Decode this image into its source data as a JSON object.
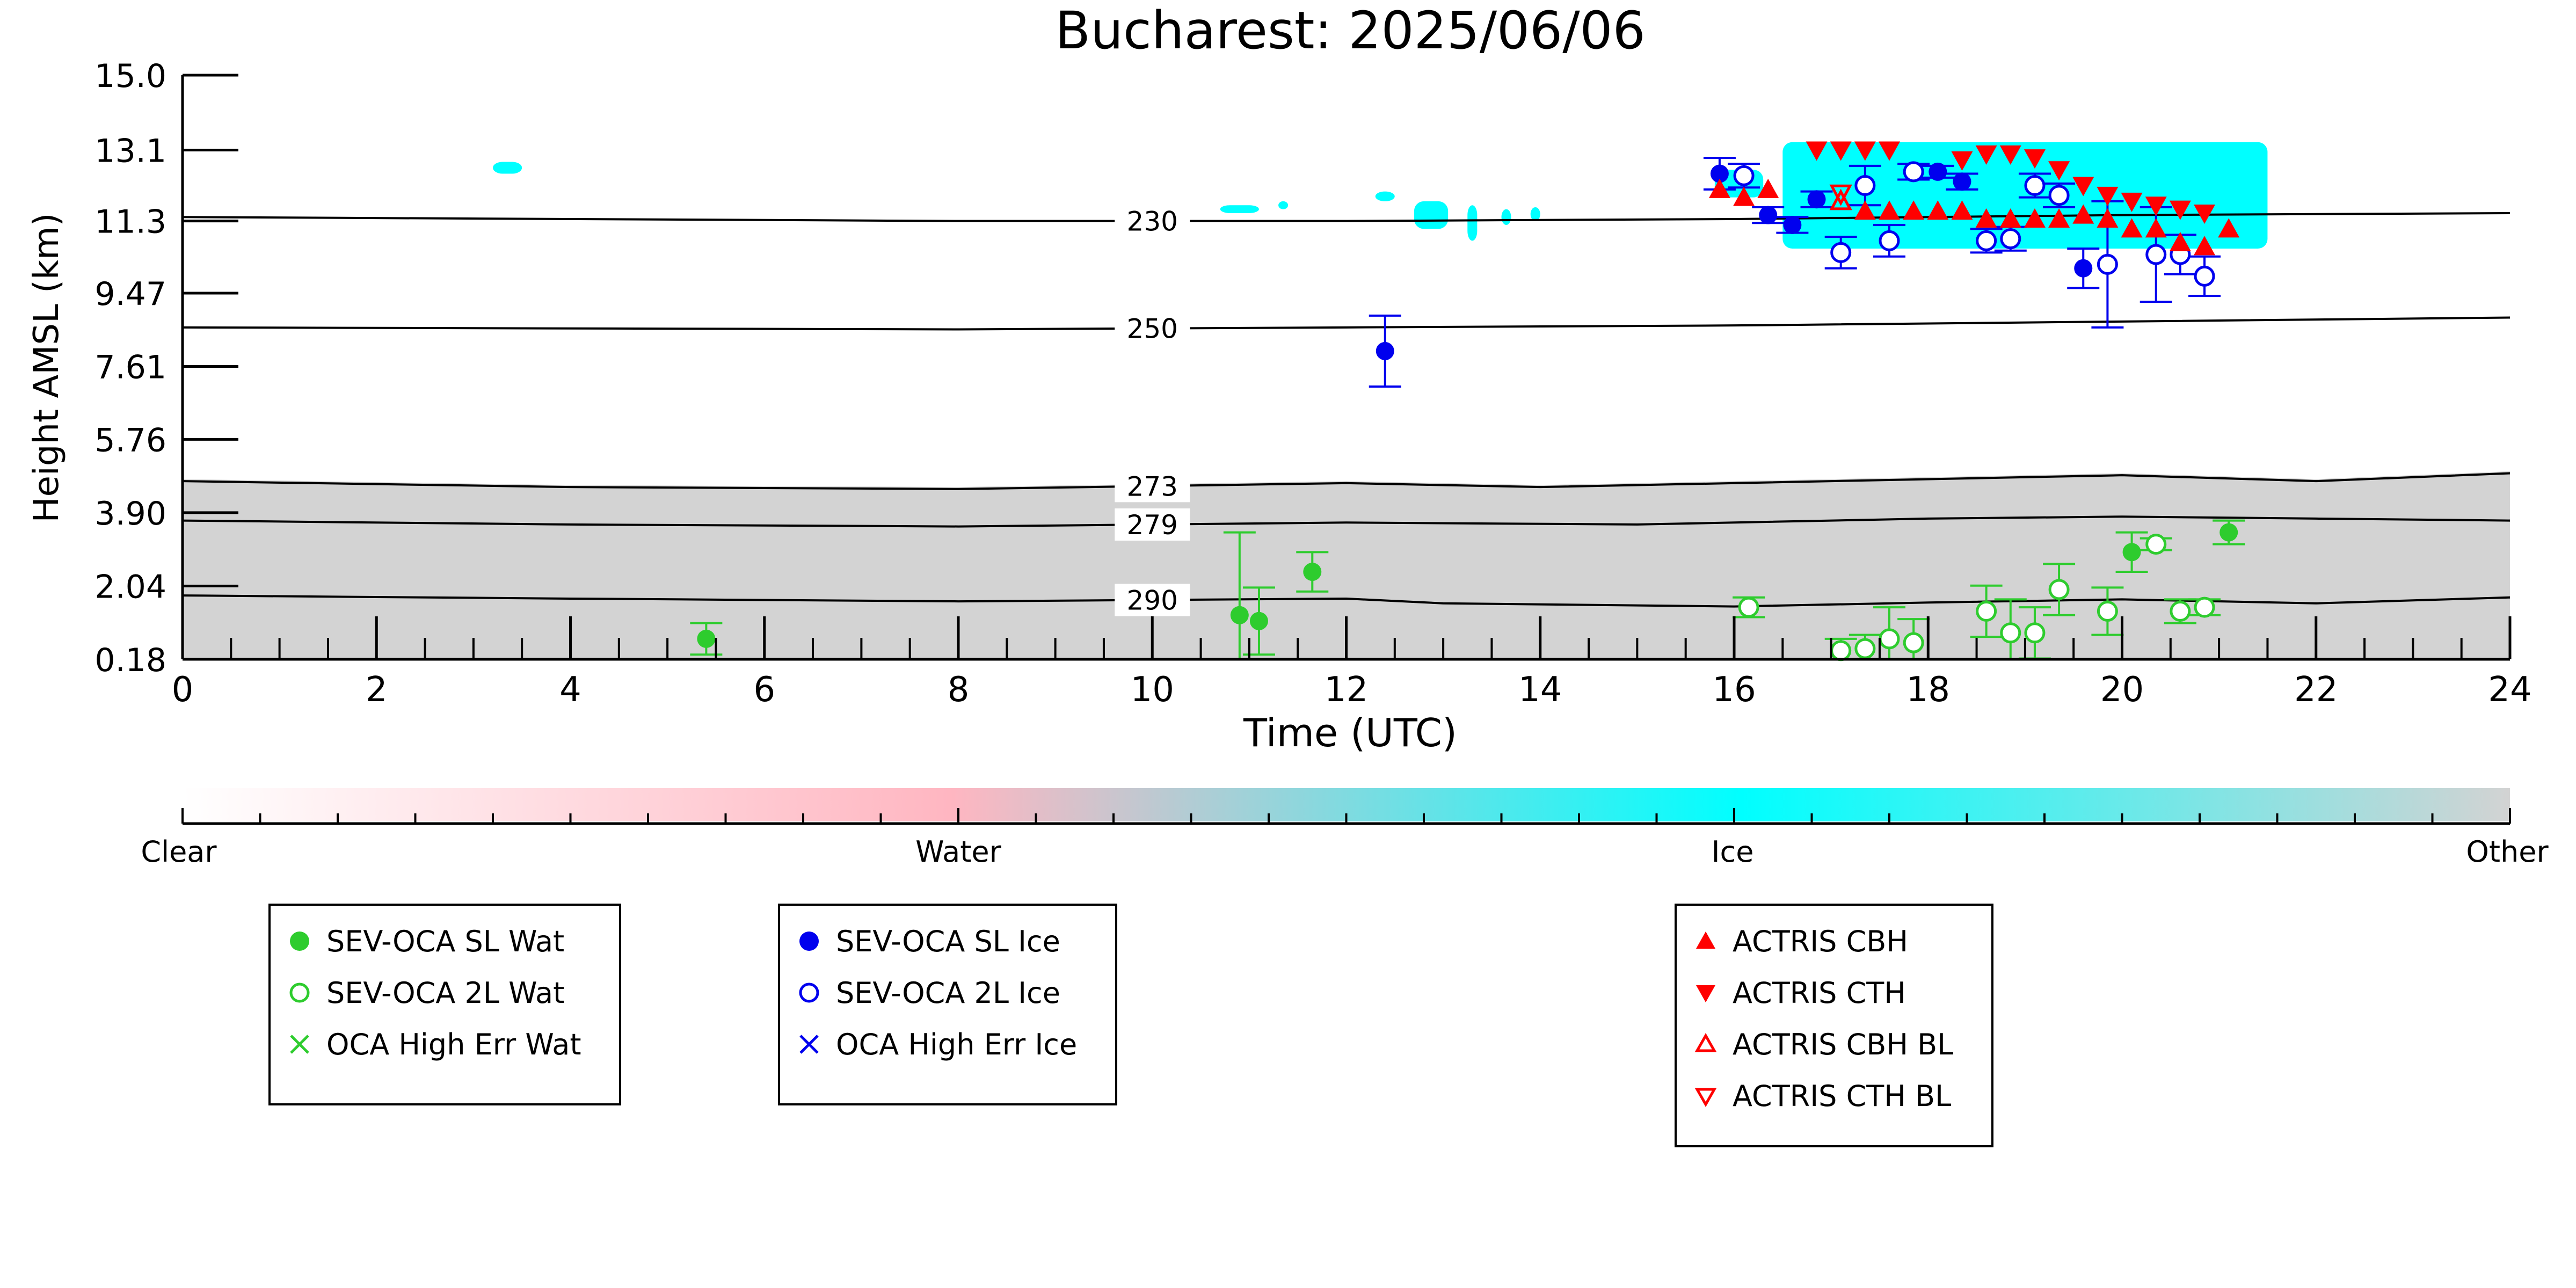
{
  "chart_data": {
    "type": "scatter",
    "title": "Bucharest: 2025/06/06",
    "xlabel": "Time (UTC)",
    "ylabel": "Height AMSL (km)",
    "xlim": [
      0,
      24
    ],
    "ylim": [
      0.18,
      15.0
    ],
    "xticks": [
      "0",
      "2",
      "4",
      "6",
      "8",
      "10",
      "12",
      "14",
      "16",
      "18",
      "20",
      "22",
      "24"
    ],
    "yticks": [
      "0.18",
      "2.04",
      "3.90",
      "5.76",
      "7.61",
      "9.47",
      "11.3",
      "13.1",
      "15.0"
    ],
    "isotherms": [
      {
        "label": "230",
        "points": [
          [
            0,
            11.4
          ],
          [
            8,
            11.3
          ],
          [
            12,
            11.3
          ],
          [
            16,
            11.35
          ],
          [
            20,
            11.45
          ],
          [
            24,
            11.5
          ]
        ]
      },
      {
        "label": "250",
        "points": [
          [
            0,
            8.6
          ],
          [
            8,
            8.55
          ],
          [
            12,
            8.6
          ],
          [
            16,
            8.65
          ],
          [
            20,
            8.75
          ],
          [
            24,
            8.85
          ]
        ]
      },
      {
        "label": "273",
        "points": [
          [
            0,
            4.7
          ],
          [
            4,
            4.55
          ],
          [
            8,
            4.5
          ],
          [
            12,
            4.65
          ],
          [
            14,
            4.55
          ],
          [
            16,
            4.65
          ],
          [
            18,
            4.75
          ],
          [
            20,
            4.85
          ],
          [
            22,
            4.7
          ],
          [
            24,
            4.9
          ]
        ]
      },
      {
        "label": "279",
        "points": [
          [
            0,
            3.7
          ],
          [
            4,
            3.6
          ],
          [
            8,
            3.55
          ],
          [
            10,
            3.6
          ],
          [
            12,
            3.65
          ],
          [
            15,
            3.6
          ],
          [
            16,
            3.65
          ],
          [
            18,
            3.75
          ],
          [
            20,
            3.8
          ],
          [
            22,
            3.75
          ],
          [
            24,
            3.7
          ]
        ]
      },
      {
        "label": "290",
        "points": [
          [
            0,
            1.8
          ],
          [
            4,
            1.72
          ],
          [
            8,
            1.65
          ],
          [
            12,
            1.72
          ],
          [
            13,
            1.6
          ],
          [
            16,
            1.52
          ],
          [
            18,
            1.62
          ],
          [
            20,
            1.7
          ],
          [
            22,
            1.6
          ],
          [
            24,
            1.75
          ]
        ]
      }
    ],
    "series": [
      {
        "name": "SEV-OCA SL Wat",
        "marker": "filled-circle",
        "color": "#2ecc2e",
        "points": [
          [
            5.4,
            0.7,
            0.4
          ],
          [
            10.9,
            1.3,
            2.1
          ],
          [
            11.1,
            1.15,
            0.85
          ],
          [
            11.65,
            2.4,
            0.5
          ],
          [
            20.1,
            2.9,
            0.5
          ],
          [
            21.1,
            3.4,
            0.3
          ]
        ]
      },
      {
        "name": "SEV-OCA 2L Wat",
        "marker": "open-circle",
        "color": "#2ecc2e",
        "points": [
          [
            16.15,
            1.5,
            0.25
          ],
          [
            17.1,
            0.4,
            0.3
          ],
          [
            17.35,
            0.45,
            0.35
          ],
          [
            17.6,
            0.7,
            0.8
          ],
          [
            17.85,
            0.6,
            0.6
          ],
          [
            18.6,
            1.4,
            0.65
          ],
          [
            18.85,
            0.85,
            0.85
          ],
          [
            19.1,
            0.85,
            0.65
          ],
          [
            19.35,
            1.95,
            0.65
          ],
          [
            19.85,
            1.4,
            0.6
          ],
          [
            20.35,
            3.1,
            0.15
          ],
          [
            20.6,
            1.4,
            0.3
          ],
          [
            20.85,
            1.5,
            0.2
          ]
        ]
      },
      {
        "name": "OCA High Err Wat",
        "marker": "cross",
        "color": "#2ecc2e",
        "points": []
      },
      {
        "name": "SEV-OCA SL Ice",
        "marker": "filled-circle",
        "color": "#0000ee",
        "points": [
          [
            12.4,
            8.0,
            0.9
          ],
          [
            15.85,
            12.5,
            0.4
          ],
          [
            16.35,
            11.45,
            0.2
          ],
          [
            16.6,
            11.2,
            0.2
          ],
          [
            16.85,
            11.85,
            0.2
          ],
          [
            18.1,
            12.55,
            0.15
          ],
          [
            18.35,
            12.3,
            0.2
          ],
          [
            19.6,
            10.1,
            0.5
          ]
        ]
      },
      {
        "name": "SEV-OCA 2L Ice",
        "marker": "open-circle",
        "color": "#0000ee",
        "points": [
          [
            16.1,
            12.45,
            0.3
          ],
          [
            17.1,
            10.5,
            0.4
          ],
          [
            17.35,
            12.2,
            0.5
          ],
          [
            17.6,
            10.8,
            0.4
          ],
          [
            17.85,
            12.55,
            0.2
          ],
          [
            18.6,
            10.8,
            0.3
          ],
          [
            18.85,
            10.85,
            0.3
          ],
          [
            19.1,
            12.2,
            0.3
          ],
          [
            19.35,
            11.95,
            0.3
          ],
          [
            19.85,
            10.2,
            1.6
          ],
          [
            20.35,
            10.45,
            1.2
          ],
          [
            20.6,
            10.45,
            0.5
          ],
          [
            20.85,
            9.9,
            0.5
          ]
        ]
      },
      {
        "name": "OCA High Err Ice",
        "marker": "cross",
        "color": "#0000ee",
        "points": []
      },
      {
        "name": "ACTRIS CBH",
        "marker": "triangle-up",
        "color": "#ff0000",
        "points": [
          [
            15.85,
            12.1
          ],
          [
            16.1,
            11.9
          ],
          [
            16.35,
            12.1
          ],
          [
            17.35,
            11.55
          ],
          [
            17.6,
            11.55
          ],
          [
            17.85,
            11.55
          ],
          [
            18.1,
            11.55
          ],
          [
            18.35,
            11.55
          ],
          [
            18.6,
            11.35
          ],
          [
            18.85,
            11.35
          ],
          [
            19.1,
            11.35
          ],
          [
            19.35,
            11.35
          ],
          [
            19.6,
            11.45
          ],
          [
            19.85,
            11.35
          ],
          [
            20.1,
            11.1
          ],
          [
            20.35,
            11.1
          ],
          [
            20.6,
            10.75
          ],
          [
            20.85,
            10.65
          ],
          [
            21.1,
            11.1
          ]
        ]
      },
      {
        "name": "ACTRIS CTH",
        "marker": "triangle-down",
        "color": "#ff0000",
        "points": [
          [
            16.85,
            13.1
          ],
          [
            17.1,
            13.1
          ],
          [
            17.35,
            13.1
          ],
          [
            17.6,
            13.1
          ],
          [
            18.35,
            12.85
          ],
          [
            18.6,
            13.0
          ],
          [
            18.85,
            13.0
          ],
          [
            19.1,
            12.9
          ],
          [
            19.35,
            12.6
          ],
          [
            19.6,
            12.2
          ],
          [
            19.85,
            11.95
          ],
          [
            20.1,
            11.8
          ],
          [
            20.35,
            11.7
          ],
          [
            20.6,
            11.6
          ],
          [
            20.85,
            11.5
          ]
        ]
      },
      {
        "name": "ACTRIS CBH BL",
        "marker": "open-triangle-up",
        "color": "#ff0000",
        "points": [
          [
            17.1,
            11.8
          ]
        ]
      },
      {
        "name": "ACTRIS CTH BL",
        "marker": "open-triangle-down",
        "color": "#ff0000",
        "points": [
          [
            17.1,
            12.0
          ]
        ]
      }
    ],
    "cloud_class_colorbar": {
      "labels": [
        "Clear",
        "Water",
        "Ice",
        "Other"
      ],
      "colors": [
        "#ffffff",
        "#ffb6c1",
        "#00ffff",
        "#d3d3d3"
      ]
    },
    "background_regions": [
      {
        "class": "Other",
        "color": "#d3d3d3"
      },
      {
        "class": "Ice",
        "color": "#00ffff"
      }
    ]
  }
}
